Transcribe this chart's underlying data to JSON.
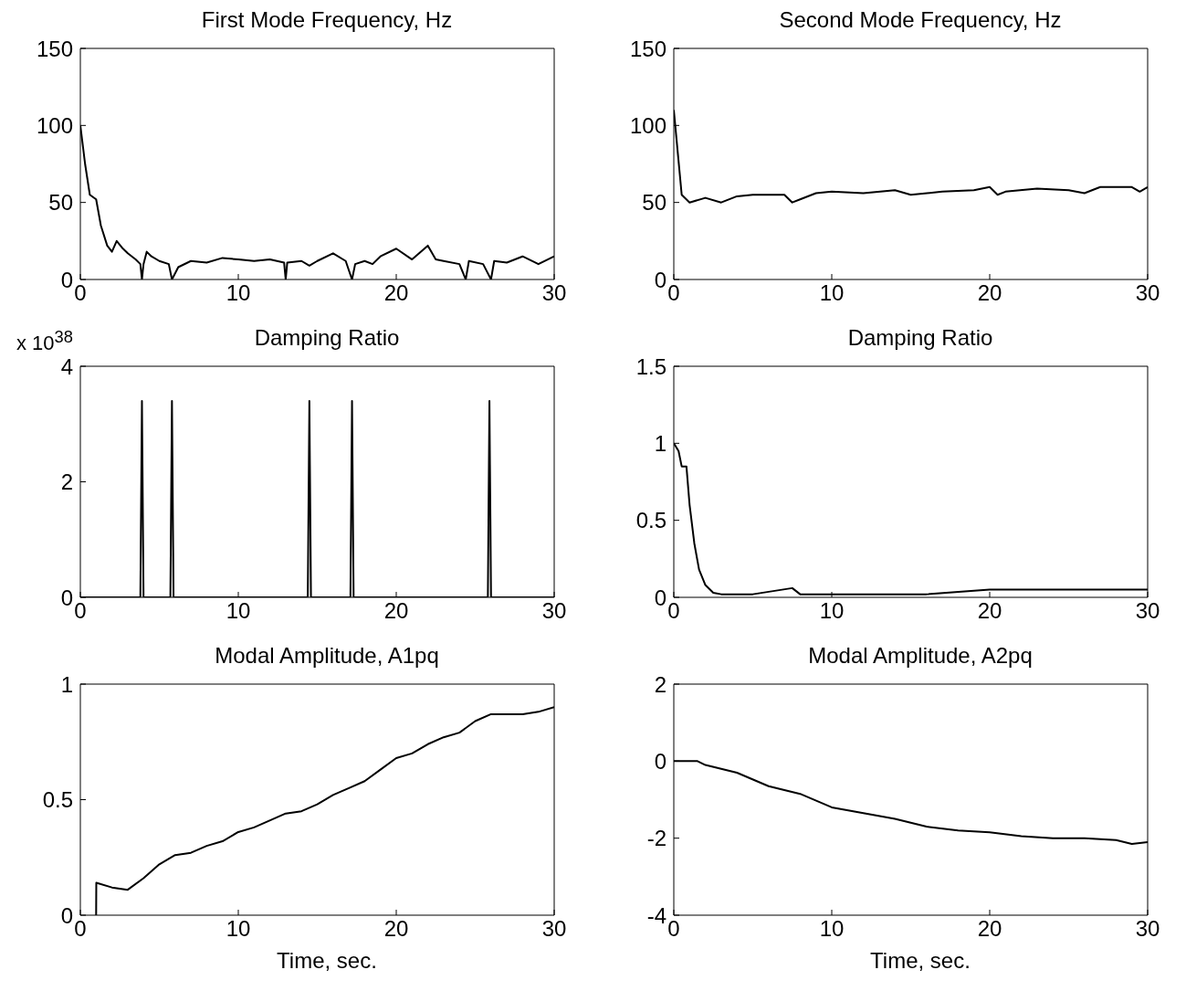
{
  "chart_data": [
    {
      "type": "line",
      "title": "First Mode Frequency, Hz",
      "x": [
        0,
        0.3,
        0.6,
        1,
        1.3,
        1.7,
        2,
        2.3,
        2.7,
        3,
        3.5,
        3.8,
        3.9,
        4.0,
        4.2,
        4.5,
        5,
        5.6,
        5.8,
        6.2,
        7,
        8,
        9,
        10,
        11,
        12,
        12.9,
        13,
        13.1,
        14,
        14.5,
        15,
        16,
        16.8,
        17.2,
        17.4,
        18,
        18.5,
        19,
        20,
        21,
        22,
        22.5,
        23,
        24,
        24.4,
        24.6,
        25.5,
        26,
        26.2,
        27,
        28,
        29,
        30
      ],
      "series": [
        {
          "color": "#000000",
          "values": [
            100,
            75,
            55,
            52,
            35,
            22,
            18,
            25,
            20,
            17,
            13,
            10,
            0,
            10,
            18,
            15,
            12,
            10,
            0,
            8,
            12,
            11,
            14,
            13,
            12,
            13,
            11,
            0,
            11,
            12,
            9,
            12,
            17,
            12,
            0,
            10,
            12,
            10,
            15,
            20,
            13,
            22,
            13,
            12,
            10,
            0,
            12,
            10,
            0,
            12,
            11,
            15,
            10,
            15
          ]
        }
      ],
      "xlim": [
        0,
        30
      ],
      "xticks": [
        0,
        10,
        20,
        30
      ],
      "ylim": [
        0,
        150
      ],
      "yticks": [
        0,
        50,
        100,
        150
      ],
      "grid": false,
      "legend": false
    },
    {
      "type": "line",
      "title": "Second Mode Frequency, Hz",
      "x": [
        0,
        0.5,
        1,
        2,
        3,
        4,
        5,
        6,
        7,
        7.5,
        8,
        9,
        10,
        12,
        14,
        15,
        17,
        19,
        20,
        20.5,
        21,
        23,
        25,
        26,
        27,
        29,
        29.5,
        30
      ],
      "series": [
        {
          "color": "#000000",
          "values": [
            110,
            55,
            50,
            53,
            50,
            54,
            55,
            55,
            55,
            50,
            52,
            56,
            57,
            56,
            58,
            55,
            57,
            58,
            60,
            55,
            57,
            59,
            58,
            56,
            60,
            60,
            57,
            60
          ]
        }
      ],
      "xlim": [
        0,
        30
      ],
      "xticks": [
        0,
        10,
        20,
        30
      ],
      "ylim": [
        0,
        150
      ],
      "yticks": [
        0,
        50,
        100,
        150
      ],
      "grid": false,
      "legend": false
    },
    {
      "type": "line",
      "title": "Damping Ratio",
      "annotations": [
        "x 10$^{38}$"
      ],
      "x": [
        0,
        3.8,
        3.9,
        4.0,
        5.7,
        5.8,
        5.9,
        14.4,
        14.5,
        14.6,
        17.1,
        17.2,
        17.3,
        25.8,
        25.9,
        26.0,
        30
      ],
      "series": [
        {
          "color": "#000000",
          "values": [
            0,
            0,
            3.4,
            0,
            0,
            3.4,
            0,
            0,
            3.4,
            0,
            0,
            3.4,
            0,
            0,
            3.4,
            0,
            0
          ]
        }
      ],
      "xlim": [
        0,
        30
      ],
      "xticks": [
        0,
        10,
        20,
        30
      ],
      "ylim": [
        0,
        4
      ],
      "yticks": [
        0,
        2,
        4
      ],
      "grid": false,
      "legend": false
    },
    {
      "type": "line",
      "title": "Damping Ratio",
      "x": [
        0,
        0.3,
        0.5,
        0.8,
        1,
        1.3,
        1.6,
        2,
        2.5,
        3,
        5,
        7.5,
        8,
        12,
        16,
        20,
        24,
        27,
        30
      ],
      "series": [
        {
          "color": "#000000",
          "values": [
            1,
            0.95,
            0.85,
            0.85,
            0.6,
            0.35,
            0.18,
            0.08,
            0.03,
            0.02,
            0.02,
            0.06,
            0.02,
            0.02,
            0.02,
            0.05,
            0.05,
            0.05,
            0.05
          ]
        }
      ],
      "xlim": [
        0,
        30
      ],
      "xticks": [
        0,
        10,
        20,
        30
      ],
      "ylim": [
        0,
        1.5
      ],
      "yticks": [
        0,
        0.5,
        1,
        1.5
      ],
      "grid": false,
      "legend": false
    },
    {
      "type": "line",
      "title": "Modal Amplitude, A1pq",
      "xlabel": "Time, sec.",
      "x": [
        1,
        1.01,
        2,
        3,
        4,
        5,
        6,
        7,
        8,
        9,
        10,
        11,
        13,
        14,
        15,
        16,
        17,
        18,
        19,
        20,
        21,
        22,
        23,
        24,
        25,
        26,
        27,
        28,
        29,
        30
      ],
      "series": [
        {
          "color": "#000000",
          "values": [
            0,
            0.14,
            0.12,
            0.11,
            0.16,
            0.22,
            0.26,
            0.27,
            0.3,
            0.32,
            0.36,
            0.38,
            0.44,
            0.45,
            0.48,
            0.52,
            0.55,
            0.58,
            0.63,
            0.68,
            0.7,
            0.74,
            0.77,
            0.79,
            0.84,
            0.87,
            0.87,
            0.87,
            0.88,
            0.9
          ]
        }
      ],
      "xlim": [
        0,
        30
      ],
      "xticks": [
        0,
        10,
        20,
        30
      ],
      "ylim": [
        0,
        1
      ],
      "yticks": [
        0,
        0.5,
        1
      ],
      "grid": false,
      "legend": false
    },
    {
      "type": "line",
      "title": "Modal Amplitude, A2pq",
      "xlabel": "Time, sec.",
      "x": [
        0,
        1.5,
        2,
        4,
        6,
        8,
        10,
        12,
        14,
        16,
        18,
        20,
        22,
        24,
        26,
        28,
        29,
        30
      ],
      "series": [
        {
          "color": "#000000",
          "values": [
            0,
            0,
            -0.1,
            -0.3,
            -0.65,
            -0.85,
            -1.2,
            -1.35,
            -1.5,
            -1.7,
            -1.8,
            -1.85,
            -1.95,
            -2.0,
            -2.0,
            -2.05,
            -2.15,
            -2.1
          ]
        }
      ],
      "xlim": [
        0,
        30
      ],
      "xticks": [
        0,
        10,
        20,
        30
      ],
      "ylim": [
        -4,
        2
      ],
      "yticks": [
        -4,
        -2,
        0,
        2
      ],
      "grid": false,
      "legend": false
    }
  ]
}
